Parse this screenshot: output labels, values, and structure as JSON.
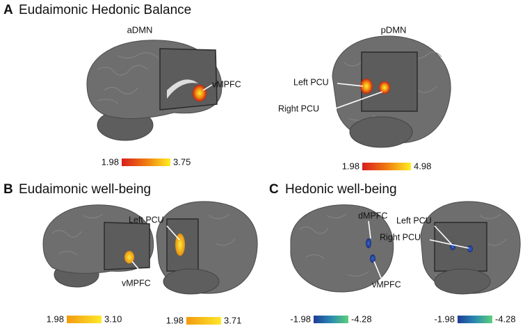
{
  "panels": [
    {
      "letter": "A",
      "title": "Eudaimonic Hedonic Balance",
      "views": [
        {
          "label": "aDMN",
          "regions": [
            "vMPFC"
          ],
          "scale": {
            "min": "1.98",
            "max": "3.75"
          }
        },
        {
          "label": "pDMN",
          "regions": [
            "Left PCU",
            "Right PCU"
          ],
          "scale": {
            "min": "1.98",
            "max": "4.98"
          }
        }
      ]
    },
    {
      "letter": "B",
      "title": "Eudaimonic well-being",
      "regions": [
        "Left PCU",
        "vMPFC"
      ],
      "scales": [
        {
          "min": "1.98",
          "max": "3.10"
        },
        {
          "min": "1.98",
          "max": "3.71"
        }
      ]
    },
    {
      "letter": "C",
      "title": "Hedonic well-being",
      "regions": [
        "dMPFC",
        "Left PCU",
        "Right PCU",
        "vMPFC"
      ],
      "scales": [
        {
          "min": "-1.98",
          "max": "-4.28"
        },
        {
          "min": "-1.98",
          "max": "-4.28"
        }
      ]
    }
  ]
}
